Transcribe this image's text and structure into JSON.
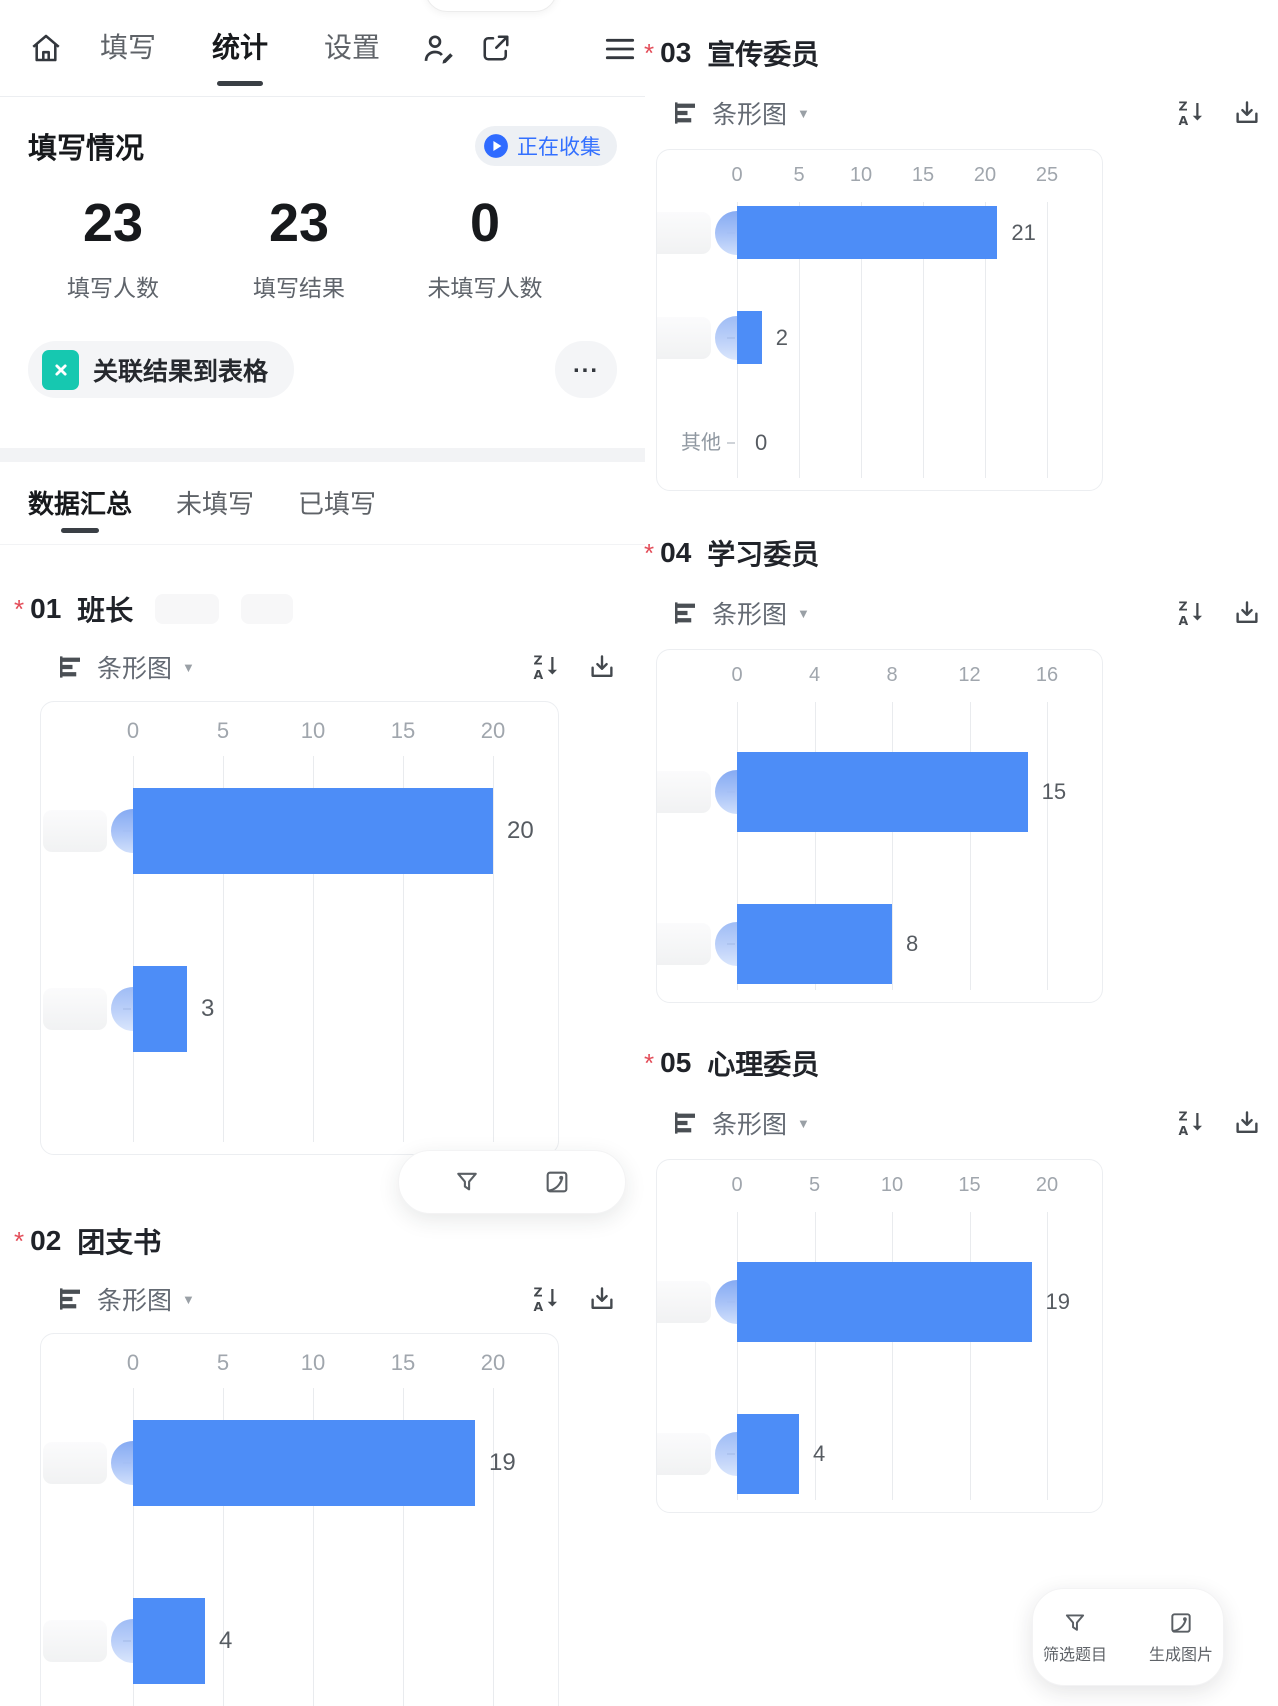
{
  "nav": {
    "tabs": [
      {
        "label": "填写",
        "active": false
      },
      {
        "label": "统计",
        "active": true
      },
      {
        "label": "设置",
        "active": false
      }
    ],
    "icons": [
      "home-icon",
      "collaborator-icon",
      "share-icon",
      "menu-icon"
    ]
  },
  "summary": {
    "title": "填写情况",
    "badge_label": "正在收集",
    "stats": [
      {
        "value": "23",
        "label": "填写人数"
      },
      {
        "value": "23",
        "label": "填写结果"
      },
      {
        "value": "0",
        "label": "未填写人数"
      }
    ]
  },
  "actions": {
    "link_table_label": "关联结果到表格",
    "more_label": "..."
  },
  "data_tabs": [
    {
      "label": "数据汇总",
      "active": true
    },
    {
      "label": "未填写",
      "active": false
    },
    {
      "label": "已填写",
      "active": false
    }
  ],
  "chart_controls": {
    "type_label": "条形图",
    "required_marker": "*",
    "sort_icon": "sort-za-icon",
    "download_icon": "download-icon"
  },
  "floating": {
    "filter_label": "筛选题目",
    "image_label": "生成图片"
  },
  "colors": {
    "bar_blue": "#4d8df7",
    "accent_blue": "#3370ff",
    "sheet_teal": "#16c8b0",
    "required_red": "#e34d59"
  },
  "chart_data": [
    {
      "type": "bar",
      "question_no": "01",
      "title": "班长",
      "required": true,
      "orientation": "horizontal",
      "ticks": [
        0,
        5,
        10,
        15,
        20
      ],
      "categories": [
        "(已隐藏)",
        "(已隐藏)"
      ],
      "redacted_labels": [
        true,
        true
      ],
      "values": [
        20,
        3
      ],
      "xlim": [
        0,
        20
      ],
      "grid": true,
      "chart_type_label": "条形图"
    },
    {
      "type": "bar",
      "question_no": "02",
      "title": "团支书",
      "required": true,
      "orientation": "horizontal",
      "ticks": [
        0,
        5,
        10,
        15,
        20
      ],
      "categories": [
        "(已隐藏)",
        "(已隐藏)"
      ],
      "redacted_labels": [
        true,
        true
      ],
      "values": [
        19,
        4
      ],
      "xlim": [
        0,
        20
      ],
      "grid": true,
      "chart_type_label": "条形图"
    },
    {
      "type": "bar",
      "question_no": "03",
      "title": "宣传委员",
      "required": true,
      "orientation": "horizontal",
      "ticks": [
        0,
        5,
        10,
        15,
        20,
        25
      ],
      "categories": [
        "(已隐藏)",
        "(已隐藏)",
        "其他"
      ],
      "redacted_labels": [
        true,
        true,
        false
      ],
      "values": [
        21,
        2,
        0
      ],
      "xlim": [
        0,
        25
      ],
      "grid": true,
      "chart_type_label": "条形图"
    },
    {
      "type": "bar",
      "question_no": "04",
      "title": "学习委员",
      "required": true,
      "orientation": "horizontal",
      "ticks": [
        0,
        4,
        8,
        12,
        16
      ],
      "categories": [
        "(已隐藏)",
        "(已隐藏)"
      ],
      "redacted_labels": [
        true,
        true
      ],
      "values": [
        15,
        8
      ],
      "xlim": [
        0,
        16
      ],
      "grid": true,
      "chart_type_label": "条形图"
    },
    {
      "type": "bar",
      "question_no": "05",
      "title": "心理委员",
      "required": true,
      "orientation": "horizontal",
      "ticks": [
        0,
        5,
        10,
        15,
        20
      ],
      "categories": [
        "(已隐藏)",
        "(已隐藏)"
      ],
      "redacted_labels": [
        true,
        true
      ],
      "values": [
        19,
        4
      ],
      "xlim": [
        0,
        20
      ],
      "grid": true,
      "chart_type_label": "条形图"
    }
  ]
}
